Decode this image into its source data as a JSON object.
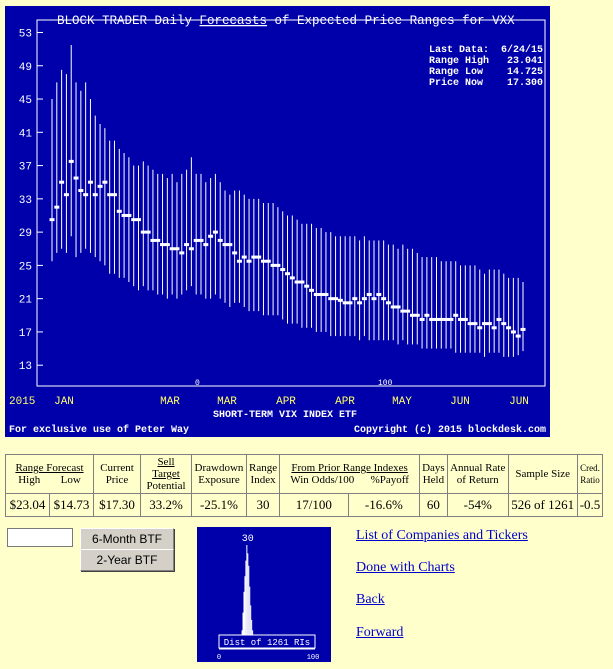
{
  "chart_data": {
    "type": "range-bars",
    "title_prefix": "BLOCK TRADER Daily ",
    "title_link": "Forecasts",
    "title_suffix": " of Expected Price Ranges for  VXX",
    "xlabel": "SHORT-TERM VIX INDEX ETF",
    "year_label": "2015",
    "x_ticks": [
      "JAN",
      "MAR",
      "MAR",
      "APR",
      "APR",
      "MAY",
      "JUN",
      "JUN"
    ],
    "y_ticks": [
      53,
      49,
      45,
      41,
      37,
      33,
      29,
      25,
      21,
      17,
      13
    ],
    "ylim": [
      10.5,
      54.5
    ],
    "markers": [
      "0",
      "100"
    ],
    "footer_left": "For exclusive use of Peter Way",
    "footer_right": "Copyright (c) 2015 blockdesk.com",
    "info": [
      {
        "label": "Last Data:",
        "value": "6/24/15"
      },
      {
        "label": "Range High",
        "value": "23.041"
      },
      {
        "label": "Range Low ",
        "value": "14.725"
      },
      {
        "label": "Price Now ",
        "value": "17.300"
      }
    ],
    "series": [
      {
        "name": "High",
        "values": [
          45,
          47,
          48.5,
          48,
          51.5,
          47,
          46,
          47,
          45,
          43,
          42,
          41.5,
          40,
          40,
          39,
          38.5,
          38,
          37,
          37,
          37.5,
          37,
          36.5,
          36,
          36,
          35.5,
          36,
          35,
          36,
          36.5,
          38,
          36,
          36,
          35,
          35.5,
          36,
          35,
          34,
          33.5,
          34,
          34,
          33.5,
          33,
          33,
          33,
          32.5,
          32.5,
          32.5,
          32,
          31.5,
          31,
          31,
          30.5,
          30,
          30,
          30,
          29.5,
          29.5,
          29,
          29,
          28.5,
          28.5,
          28.5,
          28.5,
          28.5,
          28,
          28.5,
          28,
          28,
          28,
          28,
          27.5,
          27.5,
          27,
          27.5,
          27,
          27,
          26.5,
          26,
          26,
          26,
          26,
          25.5,
          25.5,
          25.5,
          25.5,
          25,
          25,
          25,
          25,
          24.5,
          24,
          24.5,
          24.5,
          24.5,
          24,
          23.5,
          23.5,
          23.5,
          23
        ]
      },
      {
        "name": "Low",
        "values": [
          25.5,
          26.5,
          27,
          26.5,
          28.5,
          26,
          26.5,
          27,
          26.5,
          26,
          25.5,
          25,
          24,
          24,
          23.5,
          23.5,
          23,
          22.5,
          22,
          22.5,
          22,
          22,
          21.5,
          21.5,
          21,
          21.5,
          21,
          21.5,
          22,
          22.5,
          21.5,
          21.5,
          21,
          21,
          21.5,
          21,
          20.5,
          20,
          20.5,
          20.5,
          20,
          19.5,
          19.5,
          19.5,
          19,
          19,
          19,
          19,
          18.5,
          18,
          18,
          18,
          17.5,
          17.5,
          17.5,
          17,
          17,
          17,
          16.5,
          16.5,
          16.5,
          16.5,
          16.5,
          16.5,
          16,
          16.5,
          16,
          16,
          16,
          16,
          16,
          16,
          15.5,
          16,
          15.5,
          15.5,
          15.5,
          15,
          15,
          15,
          15,
          15,
          15,
          15,
          14.5,
          14.5,
          14.5,
          14.5,
          14.5,
          14.5,
          14,
          14.5,
          14.5,
          14.5,
          14,
          14,
          14,
          14.2,
          14.7
        ]
      },
      {
        "name": "Price",
        "values": [
          30.5,
          32,
          35,
          33.5,
          37.5,
          35.5,
          34,
          33.5,
          35,
          33.5,
          34.5,
          35,
          33.5,
          33.5,
          31.5,
          31,
          31,
          30.5,
          30.5,
          29,
          29,
          28,
          28,
          27.5,
          27.5,
          27,
          27,
          26.5,
          27.5,
          27,
          28,
          28,
          27.5,
          28.5,
          29,
          28,
          27.5,
          27.5,
          26.5,
          25.5,
          26,
          25.5,
          26,
          26,
          25.5,
          25.5,
          25,
          25,
          24.5,
          24,
          23.5,
          23,
          23,
          22.5,
          22,
          21.5,
          21.5,
          21.5,
          21,
          21,
          20.8,
          20.5,
          20.5,
          21,
          20.5,
          21,
          21.5,
          21,
          21.5,
          21,
          20.5,
          20,
          20,
          19.5,
          19.5,
          19,
          19,
          18.5,
          19,
          18.5,
          18.5,
          18.5,
          18.5,
          18.5,
          19,
          18.5,
          18.5,
          18,
          18,
          17.5,
          18,
          18,
          17.5,
          18.5,
          18,
          17.5,
          17,
          16.5,
          17.3
        ]
      }
    ]
  },
  "stats": {
    "range_forecast": "Range Forecast",
    "high": "High",
    "low": "Low",
    "current_price_1": "Current",
    "current_price_2": "Price",
    "sell_target_1": "Sell Target",
    "sell_target_2": "Potential",
    "drawdown_1": "Drawdown",
    "drawdown_2": "Exposure",
    "range_index_1": "Range",
    "range_index_2": "Index",
    "prior_range": "From Prior Range Indexes",
    "win_odds": "Win Odds/100",
    "payoff": "%Payoff",
    "days_held_1": "Days",
    "days_held_2": "Held",
    "annual_rate_1": "Annual Rate",
    "annual_rate_2": "of Return",
    "sample_size": "Sample Size",
    "cred_ratio_1": "Cred.",
    "cred_ratio_2": "Ratio",
    "values": {
      "high": "$23.04",
      "low": "$14.73",
      "price": "$17.30",
      "sell_target": "33.2%",
      "drawdown": "-25.1%",
      "range_index": "30",
      "win_odds": "17/100",
      "payoff": "-16.6%",
      "days_held": "60",
      "annual_rate": "-54%",
      "sample_size": "526 of 1261",
      "cred_ratio": "-0.5"
    }
  },
  "controls": {
    "ticker_value": "",
    "btn_6m": "6-Month BTF",
    "btn_2y": "2-Year BTF"
  },
  "distribution": {
    "marker": "30",
    "caption": "Dist of 1261 RIs",
    "axis_min": "0",
    "axis_max": "100",
    "peak_position": 30,
    "shape": [
      0,
      0,
      0,
      0,
      0,
      0,
      0,
      0,
      0,
      0,
      0,
      0,
      0,
      0,
      0,
      0,
      0,
      0,
      0,
      1,
      2,
      3,
      5,
      10,
      18,
      35,
      55,
      70,
      85,
      100,
      92,
      80,
      60,
      42,
      28,
      18,
      12,
      8,
      6,
      5,
      4,
      3,
      3,
      2,
      2,
      2,
      1,
      1,
      1,
      1,
      1,
      1,
      0,
      0,
      0,
      0,
      0,
      0,
      0,
      0,
      0,
      0,
      0,
      0,
      0,
      0,
      0,
      0,
      0,
      0,
      0,
      0,
      0,
      0,
      0,
      0,
      0,
      0,
      0,
      0,
      0,
      0,
      0,
      0,
      0,
      0,
      0,
      0,
      0,
      0,
      0,
      0,
      0,
      0,
      0,
      0,
      0,
      0,
      0,
      0,
      0
    ]
  },
  "links": {
    "companies": "List of Companies and Tickers",
    "done": "Done with Charts",
    "back": "Back",
    "forward": "Forward"
  },
  "colors": {
    "chart_bg": "#0000AA",
    "text": "#FFFFFF",
    "page_bg": "#FFFFCC",
    "link": "#0000CC"
  }
}
